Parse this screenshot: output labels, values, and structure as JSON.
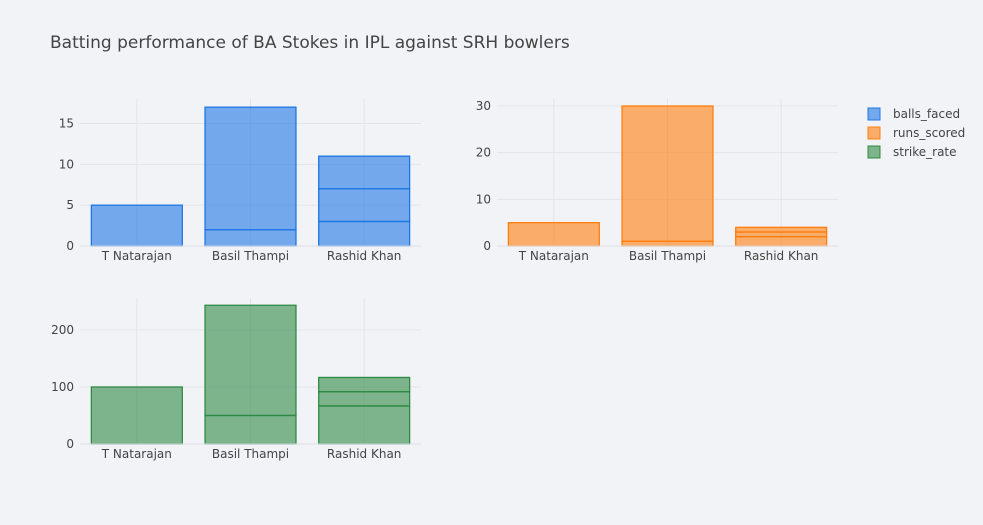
{
  "title": "Batting performance of BA Stokes in IPL against SRH bowlers",
  "colors": {
    "balls_faced": "#1f77e4",
    "runs_scored": "#ff7f0e",
    "strike_rate": "#2e8b45"
  },
  "chart_data": [
    {
      "type": "bar",
      "stacked": true,
      "grid": true,
      "categories": [
        "T Natarajan",
        "Basil Thampi",
        "Rashid Khan"
      ],
      "ylim": [
        0,
        18
      ],
      "yticks": [
        0,
        5,
        10,
        15
      ],
      "series": [
        {
          "name": "balls_faced",
          "segments": [
            [
              5
            ],
            [
              2,
              15
            ],
            [
              3,
              4,
              4
            ]
          ]
        }
      ]
    },
    {
      "type": "bar",
      "stacked": true,
      "grid": true,
      "categories": [
        "T Natarajan",
        "Basil Thampi",
        "Rashid Khan"
      ],
      "ylim": [
        0,
        31.5
      ],
      "yticks": [
        0,
        10,
        20,
        30
      ],
      "series": [
        {
          "name": "runs_scored",
          "segments": [
            [
              5
            ],
            [
              1,
              29
            ],
            [
              2,
              1,
              1
            ]
          ]
        }
      ]
    },
    {
      "type": "bar",
      "stacked": true,
      "grid": true,
      "categories": [
        "T Natarajan",
        "Basil Thampi",
        "Rashid Khan"
      ],
      "ylim": [
        0,
        256
      ],
      "yticks": [
        0,
        100,
        200
      ],
      "series": [
        {
          "name": "strike_rate",
          "segments": [
            [
              100
            ],
            [
              50,
              193.3
            ],
            [
              66.7,
              25,
              25
            ]
          ]
        }
      ]
    }
  ],
  "legend": {
    "placement": "top-right",
    "items": [
      {
        "label": "balls_faced",
        "color_key": "balls_faced"
      },
      {
        "label": "runs_scored",
        "color_key": "runs_scored"
      },
      {
        "label": "strike_rate",
        "color_key": "strike_rate"
      }
    ]
  }
}
